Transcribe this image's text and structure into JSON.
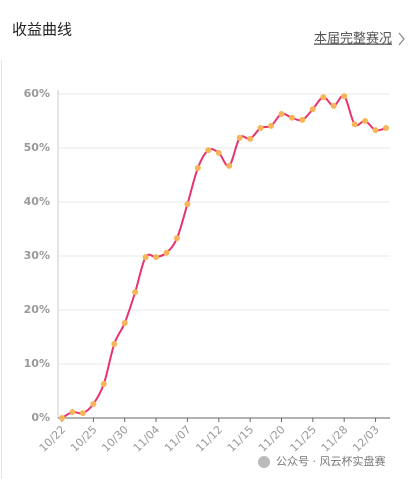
{
  "chart_data": {
    "type": "line",
    "title": "收益曲线",
    "link_text": "本届完整赛况",
    "watermark": "公众号 · 风云杯实盘赛",
    "categories": [
      "10/22",
      null,
      null,
      "10/25",
      null,
      null,
      "10/30",
      null,
      null,
      "11/04",
      null,
      null,
      "11/07",
      null,
      null,
      "11/12",
      null,
      null,
      "11/15",
      null,
      null,
      "11/20",
      null,
      null,
      "11/25",
      null,
      null,
      "11/28",
      null,
      null,
      "12/03",
      null
    ],
    "series": [
      {
        "color": "#e8336e",
        "marker_color": "#f7b55a",
        "values": [
          0,
          1.1,
          0.9,
          2.6,
          6.3,
          13.7,
          17.6,
          23.3,
          29.8,
          29.8,
          30.6,
          33.3,
          39.6,
          46.3,
          49.6,
          49.1,
          46.7,
          51.9,
          51.7,
          53.7,
          54.1,
          56.3,
          55.6,
          55.2,
          57.2,
          59.4,
          57.8,
          59.6,
          54.4,
          55.0,
          53.3,
          53.7
        ]
      }
    ],
    "ylim": [
      0,
      60
    ],
    "yticks": [
      {
        "value": 0,
        "label": "0%"
      },
      {
        "value": 10,
        "label": "10%"
      },
      {
        "value": 20,
        "label": "20%"
      },
      {
        "value": 30,
        "label": "30%"
      },
      {
        "value": 40,
        "label": "40%"
      },
      {
        "value": 50,
        "label": "50%"
      },
      {
        "value": 60,
        "label": "60%"
      }
    ],
    "grid": true
  }
}
